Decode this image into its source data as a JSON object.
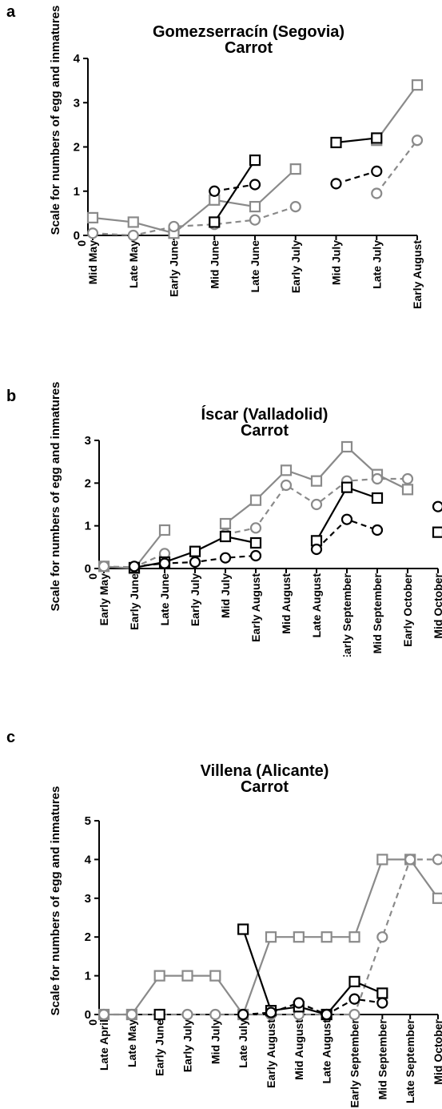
{
  "colors": {
    "black": "#000000",
    "gray": "#8a8a8a"
  },
  "chart_data": [
    {
      "type": "line",
      "panel_label": "a",
      "title": "Gomezserracín (Segovia)",
      "subtitle": "Carrot",
      "ylabel": "Scale for numbers of egg and inmatures",
      "xlabel": "",
      "ylim": [
        0,
        4
      ],
      "yticks": [
        "0",
        "1",
        "2",
        "3",
        "4"
      ],
      "categories": [
        "Mid May",
        "Late May",
        "Early June",
        "Mid June",
        "Late June",
        "Early July",
        "Mid July",
        "Late July",
        "Early August"
      ],
      "series": [
        {
          "marker": "square",
          "color": "#8a8a8a",
          "dashed": false,
          "values": [
            0.4,
            0.3,
            0.05,
            0.8,
            0.65,
            1.5,
            null,
            2.15,
            3.4
          ]
        },
        {
          "marker": "circle",
          "color": "#8a8a8a",
          "dashed": true,
          "values": [
            0.05,
            0.0,
            0.2,
            0.25,
            0.35,
            0.65,
            null,
            0.95,
            2.15
          ]
        },
        {
          "marker": "square",
          "color": "#000000",
          "dashed": false,
          "values": [
            null,
            null,
            null,
            0.3,
            1.7,
            null,
            2.1,
            2.2,
            null
          ]
        },
        {
          "marker": "circle",
          "color": "#000000",
          "dashed": true,
          "values": [
            null,
            null,
            null,
            1.0,
            1.15,
            null,
            1.17,
            1.45,
            null
          ]
        }
      ]
    },
    {
      "type": "line",
      "panel_label": "b",
      "title": "Íscar (Valladolid)",
      "subtitle": "Carrot",
      "ylabel": "Scale for numbers of egg and inmatures",
      "xlabel": "",
      "ylim": [
        0,
        3
      ],
      "yticks": [
        "0",
        "1",
        "2",
        "3"
      ],
      "categories": [
        "Early May",
        "Early June",
        "Late June",
        "Early July",
        "Mid July",
        "Early August",
        "Mid August",
        "Late August",
        "Early September",
        "Mid September",
        "Early October",
        "Mid October"
      ],
      "series": [
        {
          "marker": "square",
          "color": "#8a8a8a",
          "dashed": false,
          "values": [
            0.05,
            0.0,
            0.9,
            null,
            1.05,
            1.6,
            2.3,
            2.05,
            2.85,
            2.2,
            1.85,
            null
          ]
        },
        {
          "marker": "circle",
          "color": "#8a8a8a",
          "dashed": true,
          "values": [
            0.05,
            0.03,
            0.35,
            null,
            0.8,
            0.95,
            1.95,
            1.5,
            2.05,
            2.1,
            2.1,
            null
          ]
        },
        {
          "marker": "square",
          "color": "#000000",
          "dashed": false,
          "values": [
            null,
            0.02,
            0.15,
            0.4,
            0.75,
            0.6,
            null,
            0.65,
            1.9,
            1.65,
            null,
            0.85
          ]
        },
        {
          "marker": "circle",
          "color": "#000000",
          "dashed": true,
          "values": [
            null,
            0.05,
            0.12,
            0.15,
            0.25,
            0.3,
            null,
            0.45,
            1.15,
            0.9,
            null,
            1.45
          ]
        }
      ]
    },
    {
      "type": "line",
      "panel_label": "c",
      "title": "Villena (Alicante)",
      "subtitle": "Carrot",
      "ylabel": "Scale for numbers of egg and inmatures",
      "xlabel": "",
      "ylim": [
        0,
        5
      ],
      "yticks": [
        "0",
        "1",
        "2",
        "3",
        "4",
        "5"
      ],
      "categories": [
        "Late April",
        "Late May",
        "Early June",
        "Early July",
        "Mid July",
        "Late July",
        "Early August",
        "Mid August",
        "Late August",
        "Early September",
        "Mid September",
        "Late September",
        "Mid October"
      ],
      "series": [
        {
          "marker": "square",
          "color": "#8a8a8a",
          "dashed": false,
          "values": [
            0,
            0,
            1,
            1,
            1,
            0,
            2,
            2,
            2,
            2,
            4,
            4,
            3
          ]
        },
        {
          "marker": "circle",
          "color": "#8a8a8a",
          "dashed": true,
          "values": [
            0,
            0,
            0,
            0,
            0,
            0,
            0,
            0,
            0,
            0,
            2,
            4,
            4
          ]
        },
        {
          "marker": "square",
          "color": "#000000",
          "dashed": false,
          "values": [
            null,
            null,
            0,
            null,
            null,
            2.2,
            0.1,
            0.2,
            0,
            0.85,
            0.55,
            null,
            null
          ]
        },
        {
          "marker": "circle",
          "color": "#000000",
          "dashed": true,
          "values": [
            null,
            null,
            null,
            null,
            null,
            0,
            0.05,
            0.3,
            0,
            0.4,
            0.3,
            null,
            null
          ]
        }
      ]
    }
  ]
}
